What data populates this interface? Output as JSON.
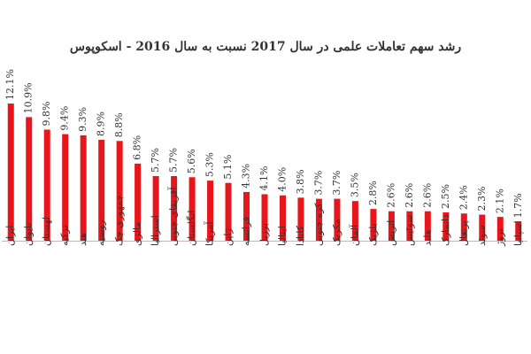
{
  "chart_data": {
    "type": "bar",
    "title": "رشد سهم تعاملات علمی در سال 2017 نسبت به سال 2016 - اسکوپوس",
    "categories": [
      "ایران",
      "تایوان",
      "لهستان",
      "ترکیه",
      "هند",
      "روسیه",
      "جمهوری چک",
      "مالزی",
      "استرالیا",
      "آفریقای جنوبی",
      "انگلستان",
      "آمریکا",
      "ژاپن",
      "فرانسه",
      "برزیل",
      "ایتالیا",
      "کانادا",
      "کره جنوبی",
      "مکزیک",
      "آلمان",
      "بلژیک",
      "اتریش",
      "سوئیس",
      "هلند",
      "دانمارک",
      "پرتغال",
      "سوئد",
      "نروژ",
      "اسپانیا"
    ],
    "values": [
      12.1,
      10.9,
      9.8,
      9.4,
      9.3,
      8.9,
      8.8,
      6.8,
      5.7,
      5.7,
      5.6,
      5.3,
      5.1,
      4.3,
      4.1,
      4.0,
      3.8,
      3.7,
      3.7,
      3.5,
      2.8,
      2.6,
      2.6,
      2.6,
      2.5,
      2.4,
      2.3,
      2.1,
      1.7
    ],
    "value_labels": [
      "12.1%",
      "10.9%",
      "9.8%",
      "9.4%",
      "9.3%",
      "8.9%",
      "8.8%",
      "6.8%",
      "5.7%",
      "5.7%",
      "5.6%",
      "5.3%",
      "5.1%",
      "4.3%",
      "4.1%",
      "4.0%",
      "3.8%",
      "3.7%",
      "3.7%",
      "3.5%",
      "2.8%",
      "2.6%",
      "2.6%",
      "2.6%",
      "2.5%",
      "2.4%",
      "2.3%",
      "2.1%",
      "1.7%"
    ],
    "color": "#e8161b"
  }
}
